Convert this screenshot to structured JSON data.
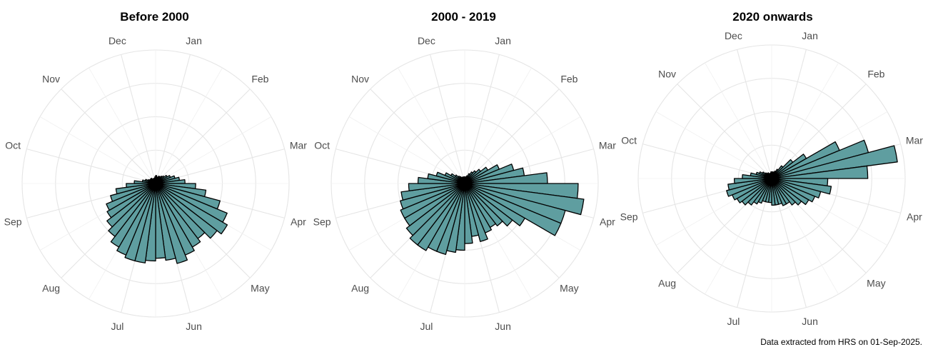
{
  "caption": "Data extracted from HRS on 01-Sep-2025.",
  "colors": {
    "bar_fill": "#5f9ea0",
    "bar_stroke": "#000000",
    "grid": "#e5e5e5",
    "month_label": "#4d4d4d"
  },
  "chart_data": [
    {
      "type": "polar-bar",
      "title": "Before 2000",
      "month_labels": [
        "Jan",
        "Feb",
        "Mar",
        "Apr",
        "May",
        "Jun",
        "Jul",
        "Aug",
        "Sep",
        "Oct",
        "Nov",
        "Dec"
      ],
      "bins_per_month": 4,
      "grid_rings": 4,
      "rmax": 1.0,
      "values": [
        0.06,
        0.05,
        0.05,
        0.06,
        0.06,
        0.07,
        0.08,
        0.1,
        0.12,
        0.15,
        0.18,
        0.22,
        0.3,
        0.38,
        0.5,
        0.58,
        0.62,
        0.58,
        0.52,
        0.55,
        0.58,
        0.62,
        0.58,
        0.56,
        0.58,
        0.6,
        0.6,
        0.58,
        0.55,
        0.5,
        0.46,
        0.42,
        0.4,
        0.35,
        0.3,
        0.22,
        0.16,
        0.1,
        0.08,
        0.06,
        0.05,
        0.05,
        0.05,
        0.04,
        0.04,
        0.04,
        0.04,
        0.05
      ]
    },
    {
      "type": "polar-bar",
      "title": "2000 - 2019",
      "month_labels": [
        "Jan",
        "Feb",
        "Mar",
        "Apr",
        "May",
        "Jun",
        "Jul",
        "Aug",
        "Sep",
        "Oct",
        "Nov",
        "Dec"
      ],
      "bins_per_month": 4,
      "grid_rings": 4,
      "rmax": 1.0,
      "values": [
        0.05,
        0.05,
        0.06,
        0.08,
        0.1,
        0.12,
        0.15,
        0.2,
        0.28,
        0.38,
        0.45,
        0.62,
        0.85,
        0.9,
        0.78,
        0.78,
        0.52,
        0.45,
        0.4,
        0.38,
        0.4,
        0.45,
        0.4,
        0.45,
        0.5,
        0.52,
        0.55,
        0.55,
        0.58,
        0.58,
        0.55,
        0.52,
        0.52,
        0.5,
        0.48,
        0.42,
        0.35,
        0.28,
        0.22,
        0.16,
        0.12,
        0.09,
        0.07,
        0.06,
        0.05,
        0.05,
        0.05,
        0.05
      ]
    },
    {
      "type": "polar-bar",
      "title": "2020 onwards",
      "month_labels": [
        "Jan",
        "Feb",
        "Mar",
        "Apr",
        "May",
        "Jun",
        "Jul",
        "Aug",
        "Sep",
        "Oct",
        "Nov",
        "Dec"
      ],
      "bins_per_month": 4,
      "grid_rings": 4,
      "rmax": 1.0,
      "values": [
        0.05,
        0.05,
        0.05,
        0.06,
        0.08,
        0.12,
        0.2,
        0.3,
        0.55,
        0.75,
        0.95,
        0.72,
        0.42,
        0.45,
        0.38,
        0.35,
        0.32,
        0.28,
        0.25,
        0.22,
        0.22,
        0.2,
        0.2,
        0.2,
        0.18,
        0.18,
        0.18,
        0.2,
        0.22,
        0.25,
        0.28,
        0.3,
        0.32,
        0.35,
        0.33,
        0.28,
        0.22,
        0.16,
        0.12,
        0.1,
        0.08,
        0.06,
        0.05,
        0.05,
        0.04,
        0.04,
        0.04,
        0.05
      ]
    }
  ]
}
